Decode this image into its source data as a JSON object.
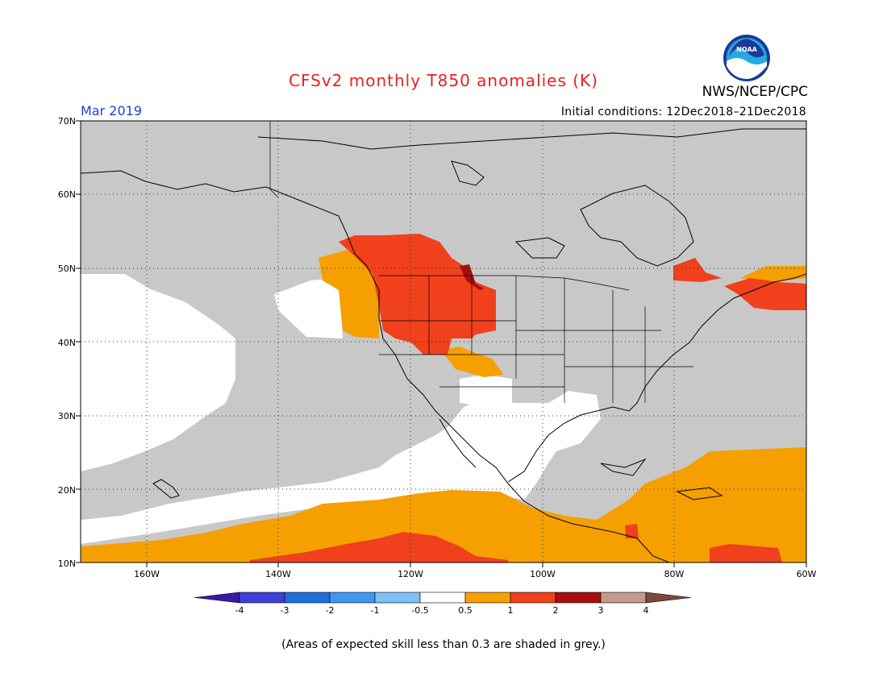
{
  "title": "CFSv2 monthly T850 anomalies (K)",
  "agency": "NWS/NCEP/CPC",
  "valid_month": "Mar 2019",
  "initial_conditions": "Initial conditions: 12Dec2018–21Dec2018",
  "footnote": "(Areas of expected skill less than 0.3 are shaded in grey.)",
  "lat_labels": [
    "70N",
    "60N",
    "50N",
    "40N",
    "30N",
    "20N",
    "10N"
  ],
  "lon_labels": [
    "160W",
    "140W",
    "120W",
    "100W",
    "80W",
    "60W"
  ],
  "colorbar": {
    "ticks": [
      "-4",
      "-3",
      "-2",
      "-1",
      "-0.5",
      "0.5",
      "1",
      "2",
      "3",
      "4"
    ],
    "colors": [
      "#3a18a8",
      "#3f3fd8",
      "#1f6fe0",
      "#3f97f2",
      "#7fbff5",
      "#ffffff",
      "#f5a000",
      "#f0401c",
      "#a80e0e",
      "#c49a8a",
      "#7a4a3a"
    ]
  },
  "chart_data": {
    "type": "heatmap",
    "region": {
      "lon_range": [
        -170,
        -60
      ],
      "lat_range": [
        10,
        70
      ]
    },
    "legend_units": "K",
    "categories": [
      {
        "range": "< -4",
        "color": "#3a18a8"
      },
      {
        "range": "-4 to -3",
        "color": "#3f3fd8"
      },
      {
        "range": "-3 to -2",
        "color": "#1f6fe0"
      },
      {
        "range": "-2 to -1",
        "color": "#3f97f2"
      },
      {
        "range": "-1 to -0.5",
        "color": "#7fbff5"
      },
      {
        "range": "-0.5 to 0.5",
        "color": "#ffffff"
      },
      {
        "range": "0.5 to 1",
        "color": "#f5a000"
      },
      {
        "range": "1 to 2",
        "color": "#f0401c"
      },
      {
        "range": "2 to 3",
        "color": "#a80e0e"
      },
      {
        "range": "3 to 4",
        "color": "#c49a8a"
      },
      {
        "range": "> 4",
        "color": "#7a4a3a"
      }
    ],
    "low_skill_color": "#c8c8c8",
    "grid": true
  }
}
